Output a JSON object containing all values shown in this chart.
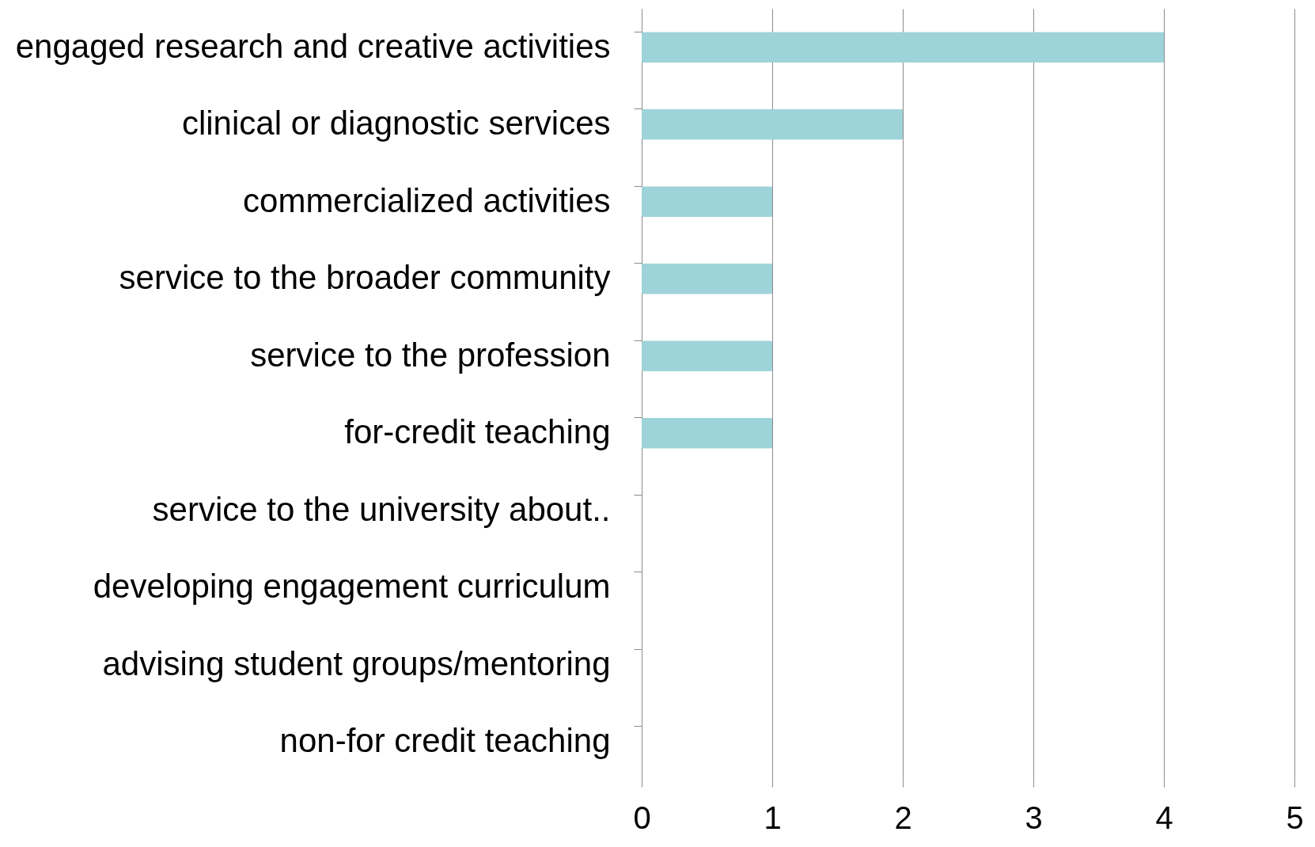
{
  "chart_data": {
    "type": "bar",
    "orientation": "horizontal",
    "categories": [
      "engaged research and creative activities",
      "clinical or diagnostic services",
      "commercialized activities",
      "service to the broader community",
      "service to the profession",
      "for-credit teaching",
      "service to the university about..",
      "developing engagement curriculum",
      "advising student groups/mentoring",
      "non-for credit teaching"
    ],
    "values": [
      4,
      2,
      1,
      1,
      1,
      1,
      0,
      0,
      0,
      0
    ],
    "color": "#9fd3da",
    "xlim": [
      0,
      5
    ],
    "xticks": [
      0,
      1,
      2,
      3,
      4,
      5
    ],
    "grid": "x"
  }
}
